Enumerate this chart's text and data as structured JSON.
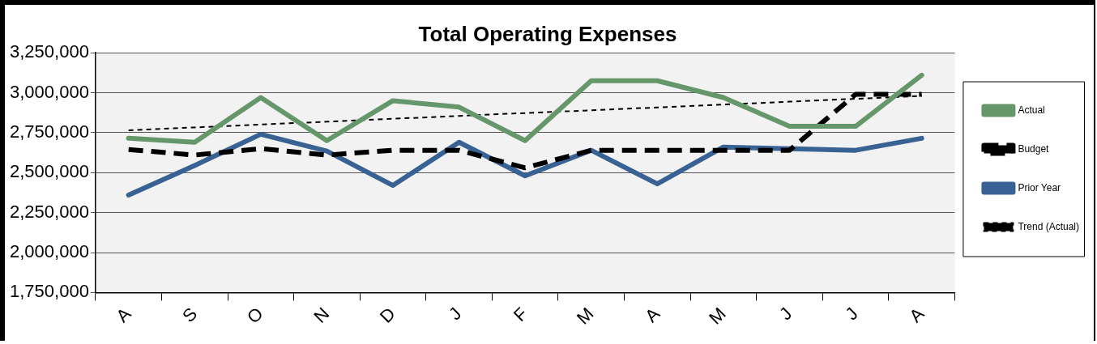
{
  "chart_data": {
    "type": "line",
    "title": "Total Operating Expenses",
    "categories": [
      "A",
      "S",
      "O",
      "N",
      "D",
      "J",
      "F",
      "M",
      "A",
      "M",
      "J",
      "J",
      "A"
    ],
    "series": [
      {
        "name": "Actual",
        "color": "#66976a",
        "values": [
          2715000,
          2690000,
          2970000,
          2700000,
          2950000,
          2910000,
          2700000,
          3075000,
          3075000,
          2970000,
          2790000,
          2790000,
          3110000
        ]
      },
      {
        "name": "Budget",
        "color": "#000000",
        "line_style": "dashed",
        "values": [
          2645000,
          2610000,
          2650000,
          2610000,
          2640000,
          2640000,
          2530000,
          2640000,
          2640000,
          2640000,
          2640000,
          2990000,
          2990000
        ]
      },
      {
        "name": "Prior Year",
        "color": "#386194",
        "values": [
          2360000,
          2545000,
          2740000,
          2635000,
          2420000,
          2690000,
          2480000,
          2640000,
          2430000,
          2660000,
          2650000,
          2640000,
          2715000
        ]
      },
      {
        "name": "Trend (Actual)",
        "color": "#000000",
        "type": "line",
        "line_style": "dotted",
        "values": [
          2765000,
          2783000,
          2801000,
          2819000,
          2837000,
          2855000,
          2873000,
          2890000,
          2908000,
          2926000,
          2944000,
          2962000,
          2980000
        ]
      }
    ],
    "ylim": [
      1750000,
      3250000
    ],
    "yticks": [
      {
        "value": 1750000,
        "label": "1,750,000"
      },
      {
        "value": 2000000,
        "label": "2,000,000"
      },
      {
        "value": 2250000,
        "label": "2,250,000"
      },
      {
        "value": 2500000,
        "label": "2,500,000"
      },
      {
        "value": 2750000,
        "label": "2,750,000"
      },
      {
        "value": 3000000,
        "label": "3,000,000"
      },
      {
        "value": 3250000,
        "label": "3,250,000"
      }
    ],
    "grid": "y",
    "legend": "right",
    "marker": "none"
  }
}
